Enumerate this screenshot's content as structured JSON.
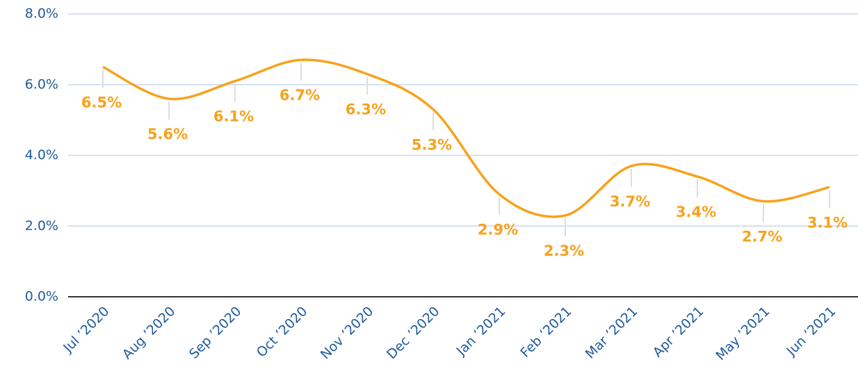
{
  "chart_data": {
    "type": "line",
    "categories": [
      "Jul ’2020",
      "Aug ’2020",
      "Sep ’2020",
      "Oct ’2020",
      "Nov ’2020",
      "Dec ’2020",
      "Jan ’2021",
      "Feb ’2021",
      "Mar ’2021",
      "Apr ’2021",
      "May ’2021",
      "Jun ’2021"
    ],
    "values": [
      6.5,
      5.6,
      6.1,
      6.7,
      6.3,
      5.3,
      2.9,
      2.3,
      3.7,
      3.4,
      2.7,
      3.1
    ],
    "value_labels": [
      "6.5%",
      "5.6%",
      "6.1%",
      "6.7%",
      "6.3%",
      "5.3%",
      "2.9%",
      "2.3%",
      "3.7%",
      "3.4%",
      "2.7%",
      "3.1%"
    ],
    "color": "#f7a21b",
    "ylim": [
      0,
      8
    ],
    "yticks": [
      {
        "value": 0,
        "label": "0.0%"
      },
      {
        "value": 2,
        "label": "2.0%"
      },
      {
        "value": 4,
        "label": "4.0%"
      },
      {
        "value": 6,
        "label": "6.0%"
      },
      {
        "value": 8,
        "label": "8.0%"
      }
    ],
    "grid": true,
    "smooth": true
  }
}
